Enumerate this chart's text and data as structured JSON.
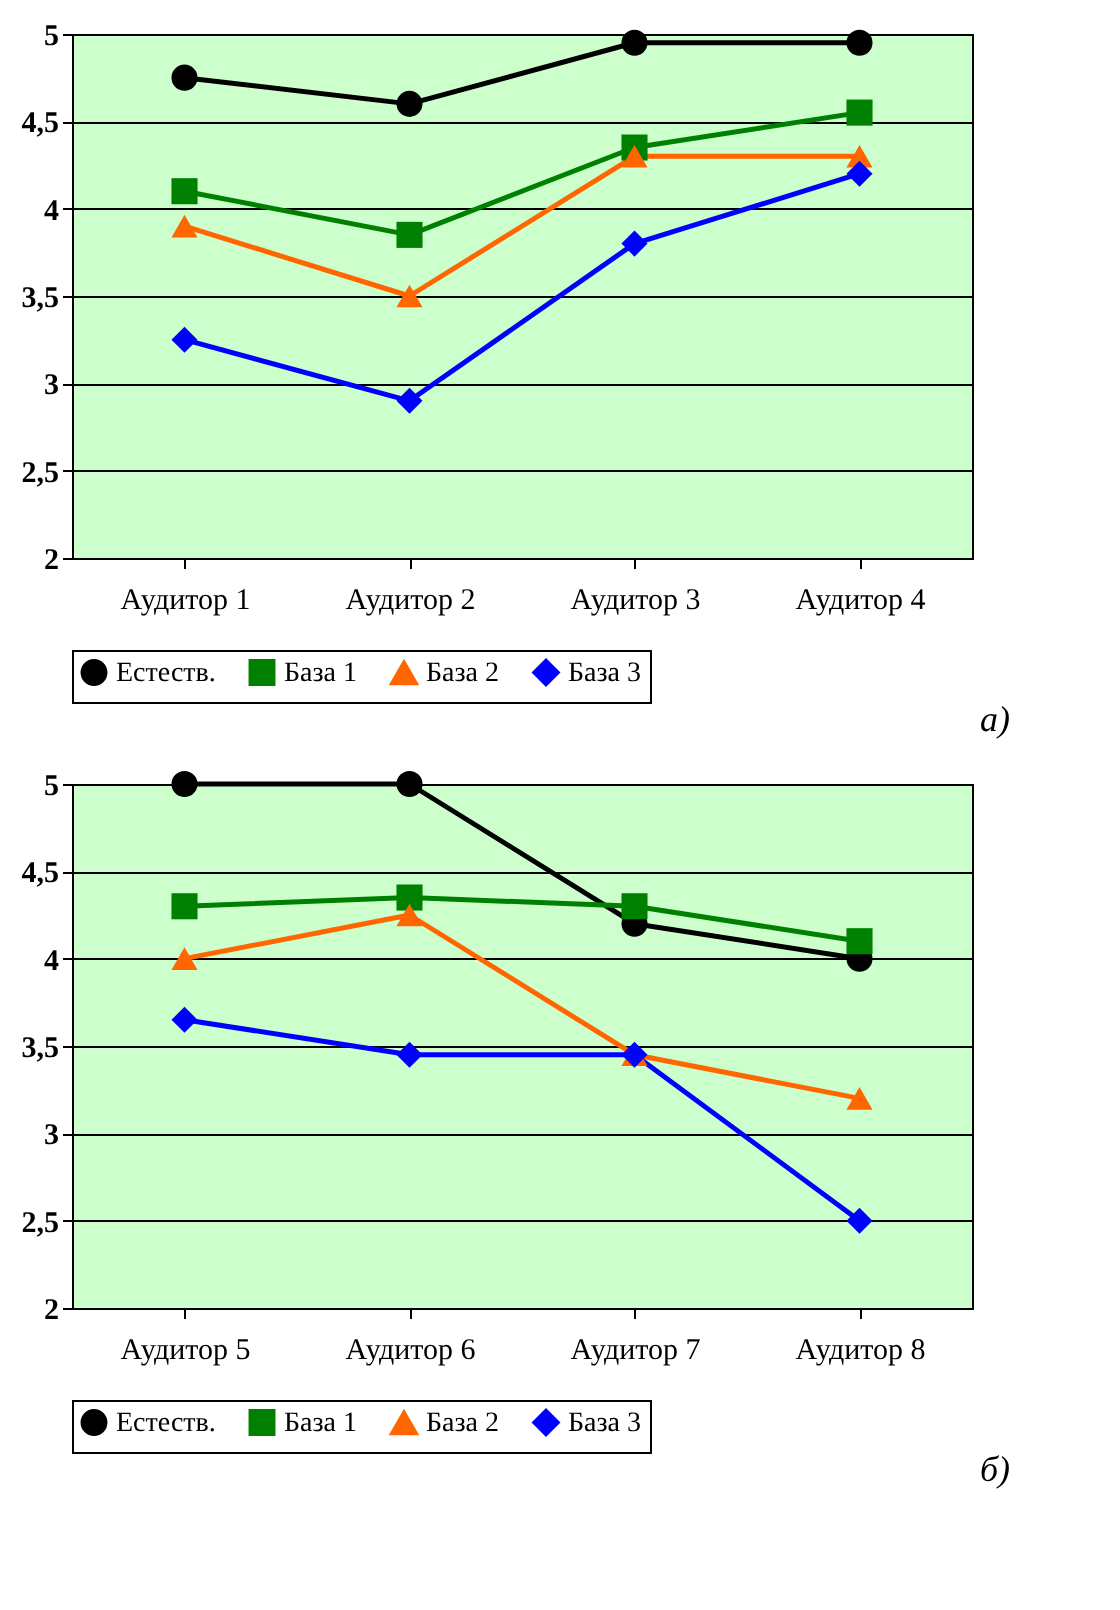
{
  "chart_data": [
    {
      "type": "line",
      "categories": [
        "Аудитор 1",
        "Аудитор 2",
        "Аудитор 3",
        "Аудитор 4"
      ],
      "series": [
        {
          "name": "Естеств.",
          "color": "#000000",
          "marker": "circle",
          "values": [
            4.75,
            4.6,
            4.95,
            4.95
          ]
        },
        {
          "name": "База 1",
          "color": "#008000",
          "marker": "square",
          "values": [
            4.1,
            3.85,
            4.35,
            4.55
          ]
        },
        {
          "name": "База 2",
          "color": "#ff6600",
          "marker": "triangle",
          "values": [
            3.9,
            3.5,
            4.3,
            4.3
          ]
        },
        {
          "name": "База 3",
          "color": "#0000ff",
          "marker": "diamond",
          "values": [
            3.25,
            2.9,
            3.8,
            4.2
          ]
        }
      ],
      "ylim": [
        2,
        5
      ],
      "yticks": [
        2,
        {
          "value": 2.5,
          "label": "2,5"
        },
        3,
        {
          "value": 3.5,
          "label": "3,5"
        },
        4,
        {
          "value": 4.5,
          "label": "4,5"
        },
        5
      ],
      "grid": "y",
      "legend": "bottom",
      "annotations": [
        "а)"
      ]
    },
    {
      "type": "line",
      "categories": [
        "Аудитор 5",
        "Аудитор 6",
        "Аудитор 7",
        "Аудитор 8"
      ],
      "series": [
        {
          "name": "Естеств.",
          "color": "#000000",
          "marker": "circle",
          "values": [
            5,
            5,
            4.2,
            4.0
          ]
        },
        {
          "name": "База 1",
          "color": "#008000",
          "marker": "square",
          "values": [
            4.3,
            4.35,
            4.3,
            4.1
          ]
        },
        {
          "name": "База 2",
          "color": "#ff6600",
          "marker": "triangle",
          "values": [
            4.0,
            4.25,
            3.45,
            3.2
          ]
        },
        {
          "name": "База 3",
          "color": "#0000ff",
          "marker": "diamond",
          "values": [
            3.65,
            3.45,
            3.45,
            2.5
          ]
        }
      ],
      "ylim": [
        2,
        5
      ],
      "yticks": [
        2,
        {
          "value": 2.5,
          "label": "2,5"
        },
        3,
        {
          "value": 3.5,
          "label": "3,5"
        },
        4,
        {
          "value": 4.5,
          "label": "4,5"
        },
        5
      ],
      "grid": "y",
      "legend": "bottom",
      "annotations": [
        "б)"
      ]
    }
  ]
}
